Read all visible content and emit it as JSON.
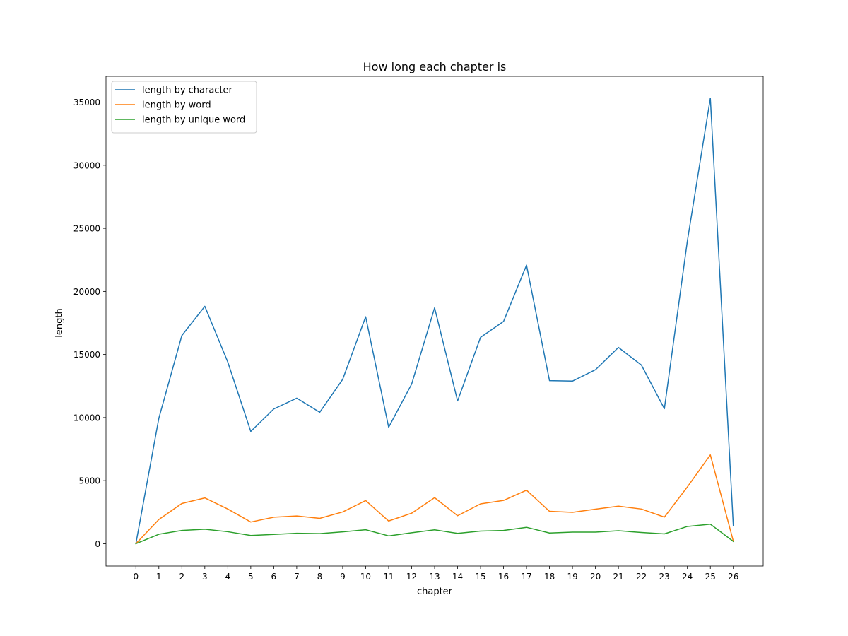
{
  "chart_data": {
    "type": "line",
    "title": "How long each chapter is",
    "xlabel": "chapter",
    "ylabel": "length",
    "x": [
      0,
      1,
      2,
      3,
      4,
      5,
      6,
      7,
      8,
      9,
      10,
      11,
      12,
      13,
      14,
      15,
      16,
      17,
      18,
      19,
      20,
      21,
      22,
      23,
      24,
      25,
      26
    ],
    "xlim": [
      -1.3,
      27.3
    ],
    "ylim": [
      -1770,
      37050
    ],
    "yticks": [
      0,
      5000,
      10000,
      15000,
      20000,
      25000,
      30000,
      35000
    ],
    "grid": false,
    "legend_position": "upper left",
    "series": [
      {
        "name": "length by character",
        "color": "#1f77b4",
        "values": [
          0,
          9950,
          16500,
          18820,
          14400,
          8900,
          10680,
          11540,
          10420,
          13030,
          17990,
          9230,
          12650,
          18700,
          11320,
          16360,
          17620,
          22080,
          12930,
          12890,
          13790,
          15560,
          14160,
          10700,
          24000,
          35320,
          1430
        ]
      },
      {
        "name": "length by word",
        "color": "#ff7f0e",
        "values": [
          0,
          1920,
          3190,
          3630,
          2750,
          1720,
          2100,
          2200,
          2010,
          2520,
          3420,
          1800,
          2420,
          3650,
          2220,
          3160,
          3430,
          4240,
          2570,
          2490,
          2740,
          2980,
          2750,
          2110,
          4500,
          7040,
          200
        ]
      },
      {
        "name": "length by unique word",
        "color": "#2ca02c",
        "values": [
          0,
          750,
          1050,
          1150,
          950,
          650,
          740,
          830,
          800,
          940,
          1110,
          620,
          870,
          1100,
          820,
          1000,
          1050,
          1300,
          850,
          920,
          920,
          1030,
          890,
          780,
          1370,
          1550,
          180
        ]
      }
    ]
  }
}
